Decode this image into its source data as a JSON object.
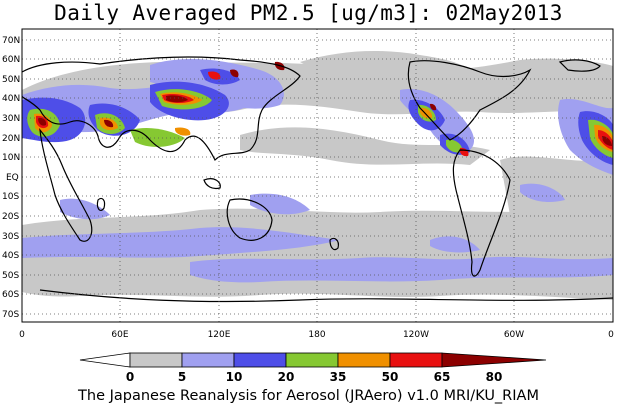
{
  "title": "Daily Averaged PM2.5 [ug/m3]: 02May2013",
  "footer": "The Japanese Reanalysis for Aerosol (JRAero) v1.0 MRI/KU_RIAM",
  "lat_labels": [
    "70N",
    "60N",
    "50N",
    "40N",
    "30N",
    "20N",
    "10N",
    "EQ",
    "10S",
    "20S",
    "30S",
    "40S",
    "50S",
    "60S",
    "70S"
  ],
  "lon_labels": [
    "0",
    "60E",
    "120E",
    "180",
    "120W",
    "60W",
    "0"
  ],
  "colorbar": {
    "labels": [
      "0",
      "5",
      "10",
      "20",
      "35",
      "50",
      "65",
      "80"
    ],
    "colors": [
      "#ffffff",
      "#c8c8c8",
      "#a0a0f0",
      "#4e4ee8",
      "#86c832",
      "#f09000",
      "#e81010",
      "#8c0000"
    ]
  }
}
